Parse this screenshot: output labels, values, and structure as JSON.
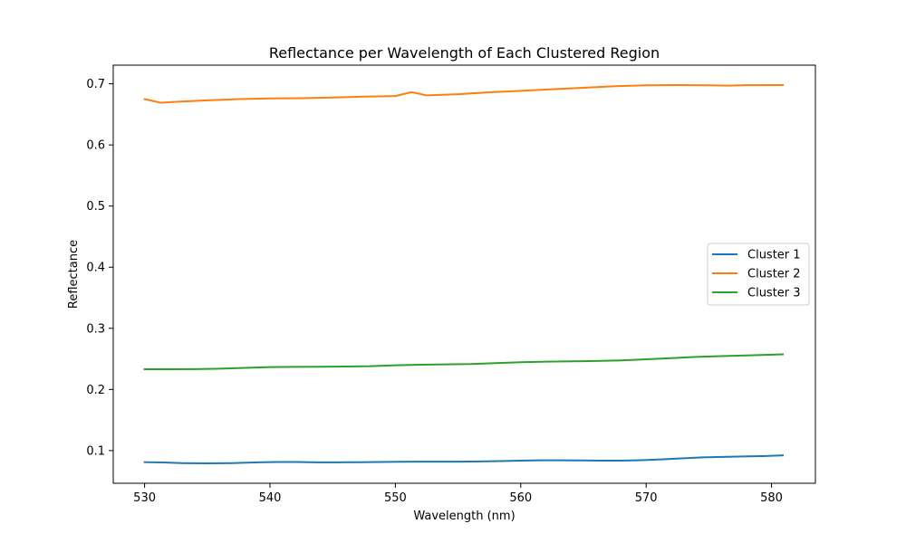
{
  "chart_data": {
    "type": "line",
    "title": "Reflectance per Wavelength of Each Clustered Region",
    "xlabel": "Wavelength (nm)",
    "ylabel": "Reflectance",
    "xlim": [
      527.5,
      583.5
    ],
    "ylim": [
      0.0465,
      0.7305
    ],
    "xticks": [
      530,
      540,
      550,
      560,
      570,
      580
    ],
    "yticks": [
      0.1,
      0.2,
      0.3,
      0.4,
      0.5,
      0.6,
      0.7
    ],
    "xtick_labels": [
      "530",
      "540",
      "550",
      "560",
      "570",
      "580"
    ],
    "ytick_labels": [
      "0.1",
      "0.2",
      "0.3",
      "0.4",
      "0.5",
      "0.6",
      "0.7"
    ],
    "grid": false,
    "legend_position": "center-right",
    "series": [
      {
        "name": "Cluster 1",
        "color": "#1f77b4",
        "x": [
          530,
          531.5,
          533,
          535,
          537,
          539,
          540.6,
          542.2,
          543.8,
          545.4,
          547,
          548.7,
          550.3,
          551.9,
          553.5,
          555.1,
          556.7,
          558.3,
          560,
          561.6,
          563.2,
          564.8,
          566.4,
          568,
          569.6,
          571.2,
          572.8,
          574.5,
          576.1,
          577.7,
          579.3,
          580.9
        ],
        "y": [
          0.081,
          0.0805,
          0.0795,
          0.079,
          0.0795,
          0.0808,
          0.0812,
          0.0812,
          0.0808,
          0.0808,
          0.081,
          0.0813,
          0.0817,
          0.0819,
          0.0819,
          0.0819,
          0.0822,
          0.0828,
          0.0835,
          0.084,
          0.084,
          0.0838,
          0.0836,
          0.0836,
          0.0843,
          0.0855,
          0.0872,
          0.0888,
          0.0897,
          0.0903,
          0.091,
          0.0922
        ]
      },
      {
        "name": "Cluster 2",
        "color": "#ff7f0e",
        "x": [
          530,
          531.3,
          532.5,
          535,
          537.5,
          540,
          542.5,
          545,
          547.5,
          550,
          551.3,
          552.5,
          555,
          557.5,
          560,
          562.5,
          565,
          567.5,
          570,
          572.5,
          575,
          576.5,
          578,
          580.9
        ],
        "y": [
          0.675,
          0.669,
          0.6705,
          0.673,
          0.675,
          0.676,
          0.6765,
          0.6775,
          0.679,
          0.68,
          0.6865,
          0.681,
          0.683,
          0.686,
          0.6885,
          0.691,
          0.6935,
          0.696,
          0.6975,
          0.698,
          0.6975,
          0.697,
          0.6978,
          0.698
        ]
      },
      {
        "name": "Cluster 3",
        "color": "#2ca02c",
        "x": [
          530,
          532,
          534,
          536,
          538,
          540,
          542,
          544,
          546,
          548,
          550,
          552,
          554,
          556,
          558,
          560,
          562,
          564,
          566,
          568,
          570,
          572,
          574,
          576,
          578,
          580.9
        ],
        "y": [
          0.233,
          0.233,
          0.2332,
          0.234,
          0.2352,
          0.2365,
          0.237,
          0.2372,
          0.2375,
          0.238,
          0.2395,
          0.2405,
          0.241,
          0.2415,
          0.243,
          0.2445,
          0.2455,
          0.246,
          0.2465,
          0.2475,
          0.2493,
          0.2512,
          0.2533,
          0.2545,
          0.2557,
          0.2575
        ]
      }
    ]
  }
}
